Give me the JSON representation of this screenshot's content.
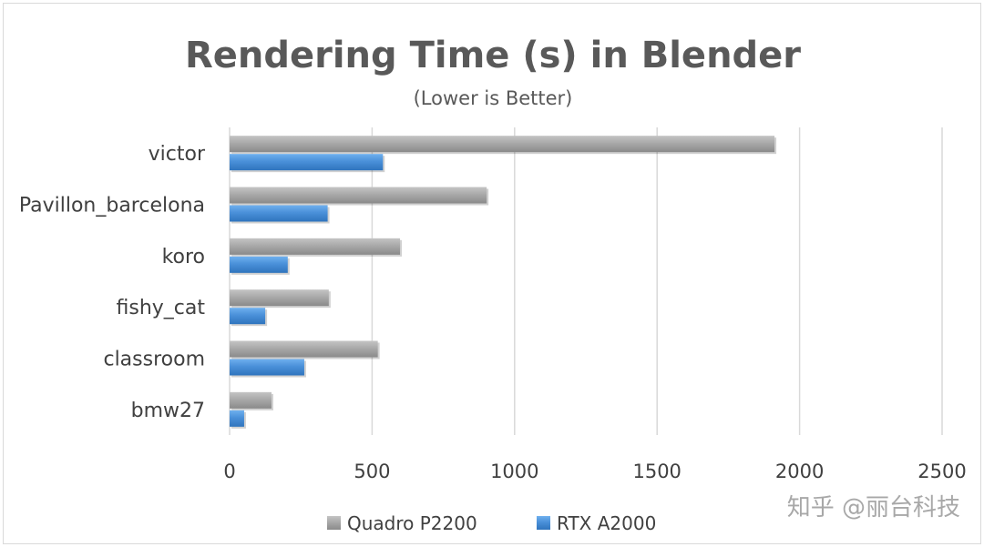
{
  "chart_data": {
    "type": "bar",
    "orientation": "horizontal",
    "title": "Rendering Time (s) in Blender",
    "subtitle": "(Lower is Better)",
    "xlabel": "",
    "ylabel": "",
    "categories": [
      "victor",
      "Pavillon_barcelona",
      "koro",
      "fishy_cat",
      "classroom",
      "bmw27"
    ],
    "series": [
      {
        "name": "Quadro P2200",
        "color": "#a6a6a6",
        "values": [
          1912,
          902,
          598,
          348,
          520,
          147
        ]
      },
      {
        "name": "RTX A2000",
        "color": "#4a90d9",
        "values": [
          538,
          344,
          204,
          125,
          262,
          51
        ]
      }
    ],
    "xlim": [
      0,
      2500
    ],
    "xticks": [
      0,
      500,
      1000,
      1500,
      2000,
      2500
    ],
    "grid": true,
    "legend_position": "bottom"
  },
  "watermark": "知乎 @丽台科技"
}
